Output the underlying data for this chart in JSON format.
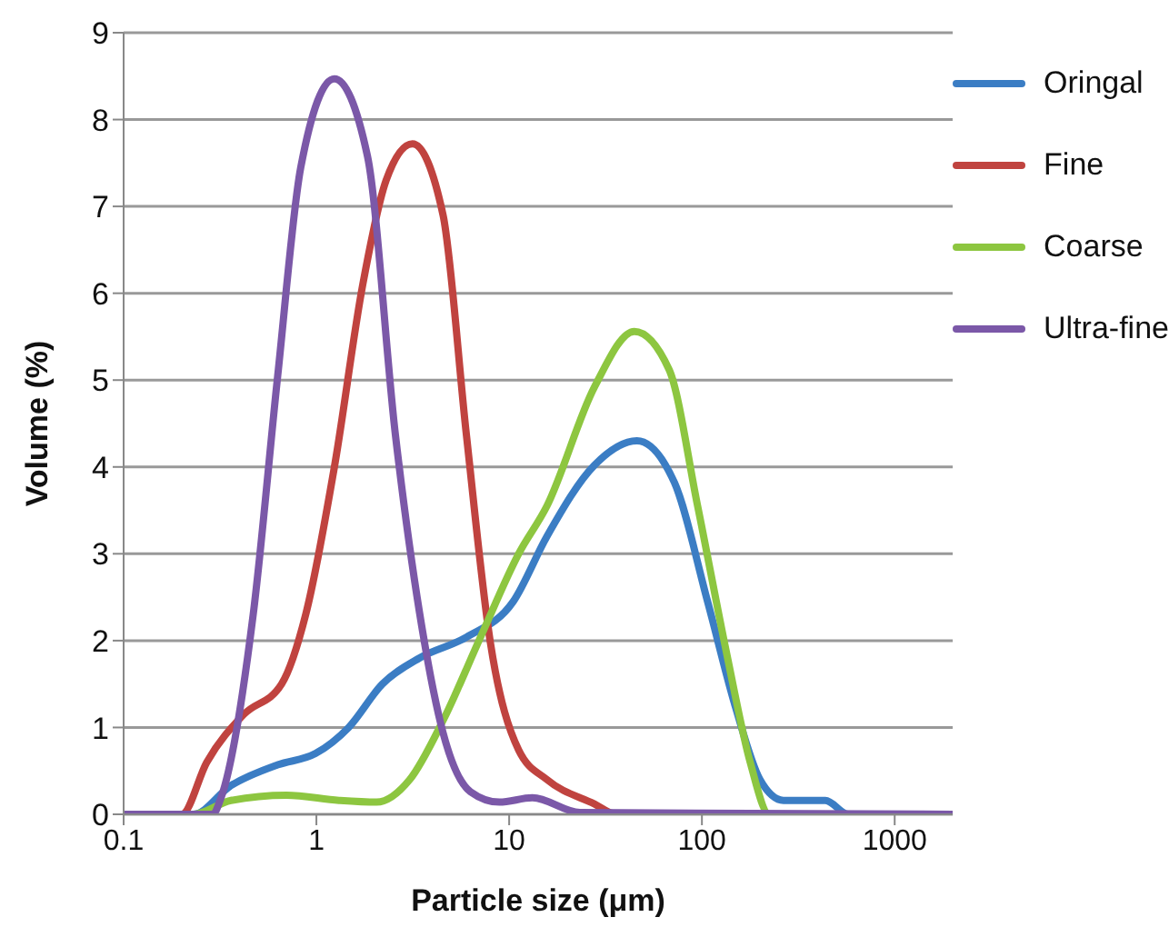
{
  "chart_data": {
    "type": "line",
    "xlabel": "Particle size (μm)",
    "ylabel": "Volume (%)",
    "log": "x",
    "xlim": [
      0.1,
      2000
    ],
    "xticks": [
      0.1,
      1,
      10,
      100,
      1000
    ],
    "ylim": [
      0,
      9
    ],
    "yticks": [
      0,
      1,
      2,
      3,
      4,
      5,
      6,
      7,
      8,
      9
    ],
    "grid": "y",
    "legend": "top right",
    "series": [
      {
        "name": "Oringal",
        "color": "#3b7dc4",
        "x": [
          0.1,
          0.23,
          0.36,
          0.63,
          0.99,
          1.47,
          2.2,
          3.43,
          6.0,
          10.5,
          15.7,
          27.7,
          46,
          72,
          107,
          150,
          200,
          265,
          437,
          575,
          2000
        ],
        "values": [
          0,
          0,
          0.33,
          0.57,
          0.7,
          1.0,
          1.5,
          1.8,
          2.04,
          2.45,
          3.2,
          4.02,
          4.3,
          3.82,
          2.45,
          1.22,
          0.4,
          0.16,
          0.16,
          0,
          0
        ]
      },
      {
        "name": "Fine",
        "color": "#c0433f",
        "x": [
          0.1,
          0.2,
          0.27,
          0.42,
          0.66,
          0.88,
          1.24,
          1.74,
          2.3,
          3.15,
          4.54,
          6.0,
          8.0,
          11.2,
          15.7,
          27.7,
          36,
          2000
        ],
        "values": [
          0,
          0,
          0.6,
          1.15,
          1.5,
          2.3,
          4.0,
          6.1,
          7.3,
          7.72,
          6.9,
          4.37,
          1.97,
          0.74,
          0.4,
          0.12,
          0,
          0
        ]
      },
      {
        "name": "Coarse",
        "color": "#8dc640",
        "x": [
          0.1,
          0.23,
          0.36,
          0.7,
          1.31,
          2.05,
          3.05,
          4.54,
          7.1,
          11.2,
          15.7,
          27.7,
          44.6,
          67.6,
          95,
          135,
          178,
          224,
          2000
        ],
        "values": [
          0,
          0,
          0.16,
          0.22,
          0.16,
          0.14,
          0.4,
          1.08,
          2.04,
          3.0,
          3.55,
          4.92,
          5.56,
          5.12,
          3.55,
          1.83,
          0.6,
          0,
          0
        ]
      },
      {
        "name": "Ultra-fine",
        "color": "#7b58a8",
        "x": [
          0.1,
          0.29,
          0.32,
          0.47,
          0.63,
          0.83,
          1.24,
          1.84,
          2.57,
          3.43,
          4.54,
          6.3,
          8.9,
          13.2,
          23.3,
          2000
        ],
        "values": [
          0,
          0,
          0.19,
          2.3,
          5.05,
          7.45,
          8.47,
          7.58,
          4.37,
          2.32,
          0.94,
          0.26,
          0.14,
          0.19,
          0.02,
          0
        ]
      }
    ]
  }
}
